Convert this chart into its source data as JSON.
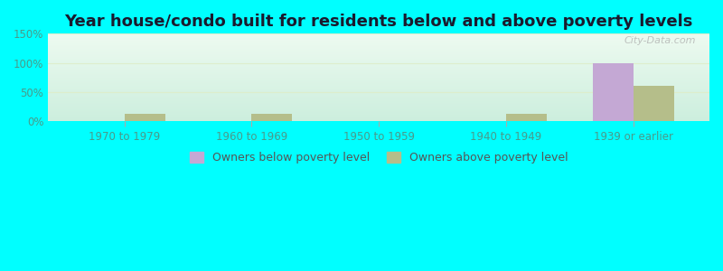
{
  "title": "Year house/condo built for residents below and above poverty levels",
  "categories": [
    "1970 to 1979",
    "1960 to 1969",
    "1950 to 1959",
    "1940 to 1949",
    "1939 or earlier"
  ],
  "below_poverty": [
    0,
    0,
    0,
    0,
    100
  ],
  "above_poverty": [
    13,
    12,
    0,
    12,
    60
  ],
  "below_color": "#c4a8d4",
  "above_color": "#b5be8a",
  "ylim": [
    0,
    150
  ],
  "yticks": [
    0,
    50,
    100,
    150
  ],
  "ytick_labels": [
    "0%",
    "50%",
    "100%",
    "150%"
  ],
  "bg_top": "#edfaf0",
  "bg_bottom": "#cceedd",
  "outer_bg": "#00ffff",
  "title_fontsize": 13,
  "title_color": "#1a1a2e",
  "tick_color": "#4a9a8a",
  "legend_labels": [
    "Owners below poverty level",
    "Owners above poverty level"
  ],
  "watermark": "City-Data.com",
  "grid_color": "#ddeecc",
  "bar_width": 0.32
}
